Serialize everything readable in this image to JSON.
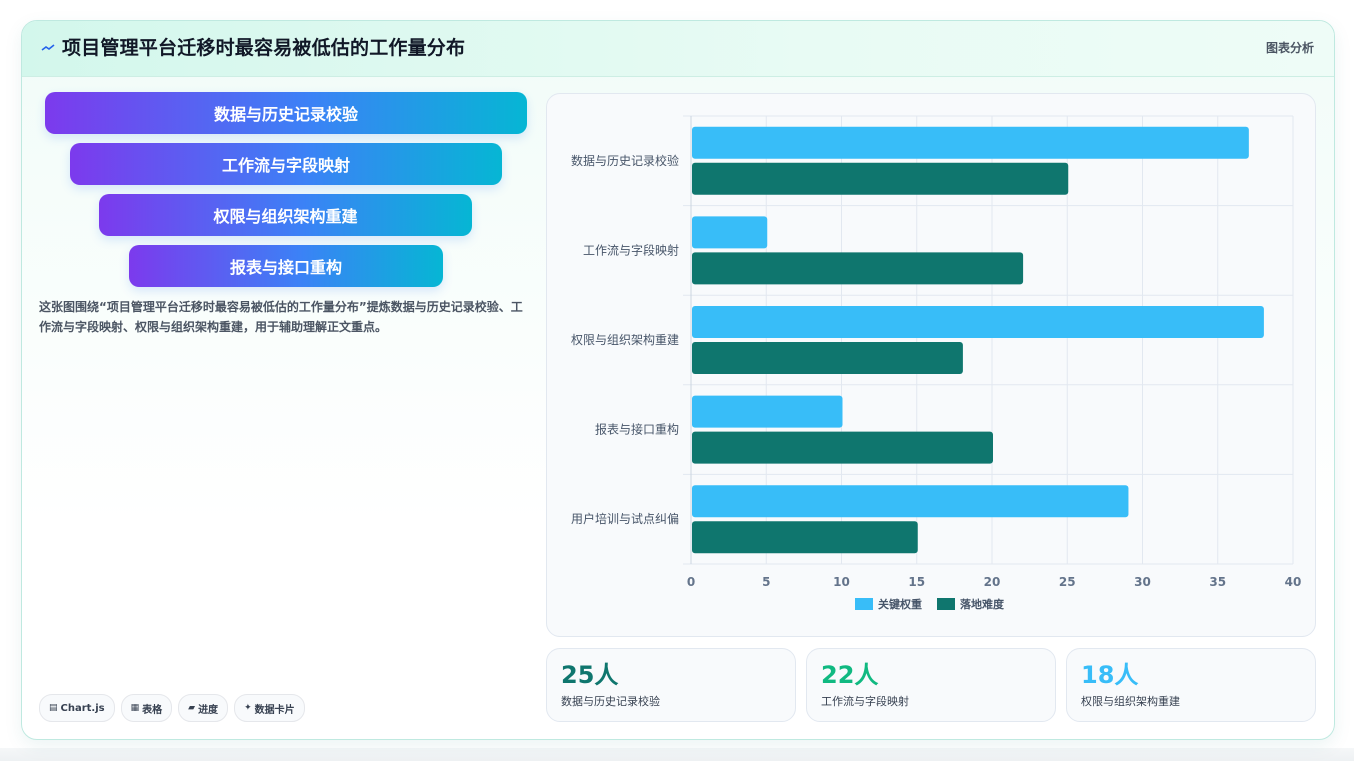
{
  "header": {
    "title_icon": "trend-icon",
    "title": "项目管理平台迁移时最容易被低估的工作量分布",
    "tag": "图表分析"
  },
  "funnel": [
    {
      "label": "数据与历史记录校验"
    },
    {
      "label": "工作流与字段映射"
    },
    {
      "label": "权限与组织架构重建"
    },
    {
      "label": "报表与接口重构"
    }
  ],
  "description": "这张图围绕“项目管理平台迁移时最容易被低估的工作量分布”提炼数据与历史记录校验、工作流与字段映射、权限与组织架构重建，用于辅助理解正文重点。",
  "chips": [
    {
      "icon": "▤",
      "label": "Chart.js"
    },
    {
      "icon": "▦",
      "label": "表格"
    },
    {
      "icon": "▰",
      "label": "进度"
    },
    {
      "icon": "✦",
      "label": "数据卡片"
    }
  ],
  "stats": [
    {
      "value": "25人",
      "label": "数据与历史记录校验",
      "color": "#0f766e"
    },
    {
      "value": "22人",
      "label": "工作流与字段映射",
      "color": "#10b981"
    },
    {
      "value": "18人",
      "label": "权限与组织架构重建",
      "color": "#38bdf8"
    }
  ],
  "chart_data": {
    "type": "bar",
    "orientation": "horizontal",
    "categories": [
      "数据与历史记录校验",
      "工作流与字段映射",
      "权限与组织架构重建",
      "报表与接口重构",
      "用户培训与试点纠偏"
    ],
    "series": [
      {
        "name": "关键权重",
        "color": "#38bdf8",
        "values": [
          37,
          5,
          38,
          10,
          29
        ]
      },
      {
        "name": "落地难度",
        "color": "#0f766e",
        "values": [
          25,
          22,
          18,
          20,
          15
        ]
      }
    ],
    "xlim": [
      0,
      40
    ],
    "xticks": [
      0,
      5,
      10,
      15,
      20,
      25,
      30,
      35,
      40
    ],
    "grid": true,
    "legend": "bottom"
  }
}
